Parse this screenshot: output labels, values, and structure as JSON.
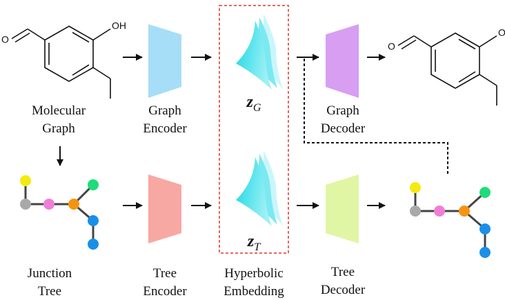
{
  "labels": {
    "molecular_graph": [
      "Molecular",
      "Graph"
    ],
    "graph_encoder": [
      "Graph",
      "Encoder"
    ],
    "graph_decoder": [
      "Graph",
      "Decoder"
    ],
    "junction_tree": [
      "Junction",
      "Tree"
    ],
    "tree_encoder": [
      "Tree",
      "Encoder"
    ],
    "hyperbolic_embedding": [
      "Hyperbolic",
      "Embedding"
    ],
    "tree_decoder": [
      "Tree",
      "Decoder"
    ]
  },
  "latents": {
    "graph": {
      "symbol": "z",
      "subscript": "G"
    },
    "tree": {
      "symbol": "z",
      "subscript": "T"
    }
  },
  "atoms": {
    "hydroxyl": "OH",
    "aldehyde_o": "O"
  },
  "colors": {
    "graph_encoder": "#a6def7",
    "tree_encoder": "#f8a8a3",
    "graph_decoder": "#d79ef2",
    "tree_decoder": "#e0f6a4",
    "highlight_box": "#e8665c",
    "hyperbolic_fill": "#35dbe8",
    "node_yellow": "#f5ea10",
    "node_gray": "#a9a9a9",
    "node_pink": "#f07ed6",
    "node_orange": "#f59410",
    "node_green": "#1edc7a",
    "node_blue": "#1a8fe8"
  }
}
